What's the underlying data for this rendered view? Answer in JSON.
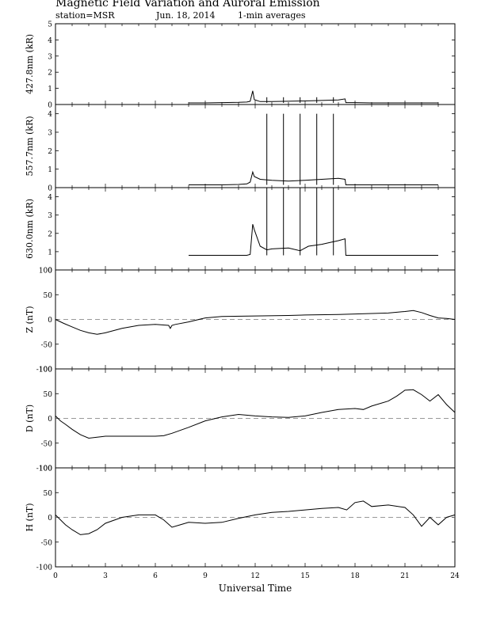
{
  "title": "Magnetic Field Variation and Auroral Emission",
  "station": "station=MSR",
  "date": "Jun. 18, 2014",
  "averaging": "1-min averages",
  "chart_data": [
    {
      "type": "line",
      "ylabel": "427.8nm (kR)",
      "ylim": [
        0,
        5
      ],
      "yticks": [
        0,
        1,
        2,
        3,
        4,
        5
      ],
      "xlim": [
        0,
        24
      ],
      "series": [
        {
          "x": [
            8,
            9,
            10,
            11,
            11.5,
            11.7,
            11.85,
            11.95,
            12.3,
            13,
            14,
            15,
            16,
            17,
            17.4,
            17.45,
            18,
            19,
            20,
            21,
            22,
            23
          ],
          "y": [
            0.1,
            0.1,
            0.12,
            0.13,
            0.15,
            0.2,
            0.85,
            0.3,
            0.18,
            0.18,
            0.2,
            0.22,
            0.25,
            0.28,
            0.35,
            0.12,
            0.12,
            0.1,
            0.1,
            0.1,
            0.1,
            0.1
          ]
        }
      ],
      "spikes": {
        "x": [
          12.7,
          13.7,
          14.7,
          15.7,
          16.7
        ],
        "y": [
          0.45,
          0.45,
          0.45,
          0.45,
          0.45
        ]
      }
    },
    {
      "type": "line",
      "ylabel": "557.7nm (kR)",
      "ylim": [
        0,
        4.5
      ],
      "yticks": [
        0,
        1,
        2,
        3,
        4
      ],
      "xlim": [
        0,
        24
      ],
      "series": [
        {
          "x": [
            8,
            9,
            10,
            11,
            11.5,
            11.7,
            11.85,
            11.95,
            12.3,
            13,
            14,
            15,
            16,
            17,
            17.4,
            17.45,
            18,
            19,
            20,
            21,
            22,
            23
          ],
          "y": [
            0.15,
            0.15,
            0.15,
            0.17,
            0.2,
            0.3,
            0.85,
            0.6,
            0.45,
            0.4,
            0.35,
            0.4,
            0.45,
            0.5,
            0.45,
            0.15,
            0.15,
            0.15,
            0.15,
            0.15,
            0.15,
            0.15
          ]
        }
      ],
      "spikes": {
        "x": [
          12.7,
          13.7,
          14.7,
          15.7,
          16.7
        ],
        "y": [
          4,
          4,
          4,
          4,
          4
        ]
      }
    },
    {
      "type": "line",
      "ylabel": "630.0nm (kR)",
      "ylim": [
        0,
        4.5
      ],
      "yticks": [
        0,
        1,
        2,
        3,
        4
      ],
      "xlim": [
        0,
        24
      ],
      "series": [
        {
          "x": [
            8,
            9,
            10,
            11,
            11.5,
            11.7,
            11.85,
            11.95,
            12.3,
            12.7,
            13,
            14,
            14.7,
            15.2,
            16,
            16.5,
            17,
            17.4,
            17.45,
            18,
            19,
            20,
            21,
            22,
            23
          ],
          "y": [
            0.8,
            0.8,
            0.8,
            0.8,
            0.8,
            0.85,
            2.5,
            2.2,
            1.3,
            1.1,
            1.15,
            1.2,
            1.05,
            1.3,
            1.4,
            1.5,
            1.6,
            1.7,
            0.8,
            0.8,
            0.8,
            0.8,
            0.8,
            0.8,
            0.8
          ]
        }
      ],
      "spikes": {
        "x": [
          12.7,
          13.7,
          14.7,
          15.7,
          16.7
        ],
        "y": [
          4.5,
          4.5,
          4.5,
          4.5,
          4.5
        ]
      }
    },
    {
      "type": "line",
      "ylabel": "Z (nT)",
      "ylim": [
        -100,
        100
      ],
      "yticks": [
        -100,
        -50,
        0,
        50,
        100
      ],
      "xlim": [
        0,
        24
      ],
      "series": [
        {
          "x": [
            0,
            0.5,
            1,
            1.5,
            2,
            2.5,
            3,
            4,
            5,
            6,
            6.8,
            6.9,
            7.0,
            7.2,
            8,
            9,
            10,
            12,
            14,
            15,
            17,
            19,
            20,
            21,
            21.5,
            22,
            22.5,
            23,
            23.5,
            24
          ],
          "y": [
            0,
            -8,
            -15,
            -22,
            -27,
            -30,
            -27,
            -18,
            -12,
            -10,
            -12,
            -18,
            -12,
            -10,
            -5,
            3,
            6,
            7,
            8,
            9,
            10,
            12,
            13,
            16,
            18,
            14,
            8,
            3,
            2,
            0
          ]
        }
      ],
      "zero_line": true
    },
    {
      "type": "line",
      "ylabel": "D (nT)",
      "ylim": [
        -100,
        100
      ],
      "yticks": [
        -100,
        -50,
        0,
        50,
        100
      ],
      "xlim": [
        0,
        24
      ],
      "series": [
        {
          "x": [
            0,
            0.3,
            0.6,
            1,
            1.5,
            2,
            2.5,
            3,
            4,
            5,
            6,
            6.5,
            7,
            8,
            9,
            10,
            11,
            12,
            13,
            14,
            15,
            16,
            17,
            18,
            18.5,
            19,
            20,
            20.5,
            21,
            21.5,
            22,
            22.5,
            23,
            23.5,
            24
          ],
          "y": [
            5,
            -5,
            -12,
            -22,
            -33,
            -40,
            -38,
            -36,
            -36,
            -36,
            -36,
            -35,
            -30,
            -18,
            -5,
            3,
            8,
            5,
            3,
            2,
            5,
            12,
            18,
            20,
            18,
            25,
            35,
            45,
            57,
            58,
            48,
            35,
            48,
            28,
            12
          ]
        }
      ],
      "zero_line": true
    },
    {
      "type": "line",
      "ylabel": "H (nT)",
      "ylim": [
        -100,
        100
      ],
      "yticks": [
        -100,
        -50,
        0,
        50,
        100
      ],
      "xlim": [
        0,
        24
      ],
      "series": [
        {
          "x": [
            0,
            0.3,
            0.6,
            1,
            1.5,
            2,
            2.5,
            3,
            4,
            5,
            6,
            6.5,
            7,
            7.5,
            8,
            9,
            10,
            11,
            12,
            13,
            14,
            15,
            16,
            17,
            17.5,
            18,
            18.5,
            19,
            20,
            21,
            21.5,
            22,
            22.5,
            23,
            23.5,
            24
          ],
          "y": [
            5,
            -5,
            -15,
            -25,
            -35,
            -33,
            -25,
            -12,
            0,
            5,
            5,
            -5,
            -20,
            -15,
            -10,
            -12,
            -10,
            -2,
            5,
            10,
            12,
            15,
            18,
            20,
            15,
            30,
            33,
            22,
            25,
            20,
            5,
            -18,
            0,
            -15,
            0,
            5
          ]
        }
      ],
      "zero_line": true
    }
  ],
  "xaxis": {
    "label": "Universal Time",
    "ticks": [
      "0",
      "3",
      "6",
      "9",
      "12",
      "15",
      "18",
      "21",
      "24"
    ]
  }
}
